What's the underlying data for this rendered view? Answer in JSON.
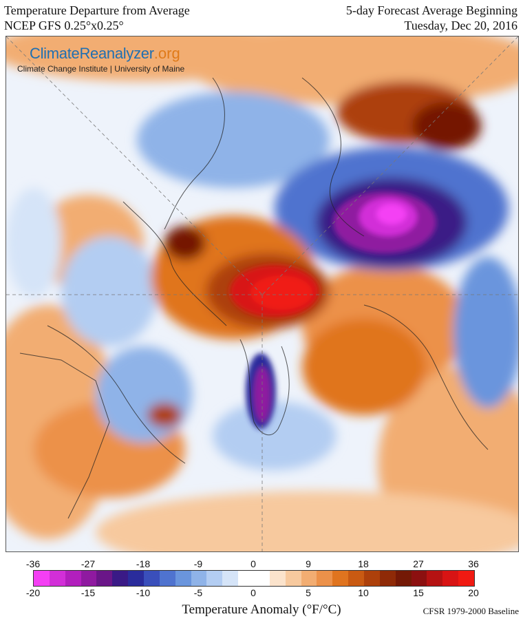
{
  "header": {
    "title_left_1": "Temperature Departure from Average",
    "title_left_2": "NCEP GFS 0.25°x0.25°",
    "title_right_1": "5-day Forecast Average Beginning",
    "title_right_2": "Tuesday, Dec 20, 2016"
  },
  "branding": {
    "name_part1": "ClimateReanalyzer",
    "name_part2": ".org",
    "subtitle": "Climate Change Institute | University of Maine"
  },
  "colorbar": {
    "title": "Temperature Anomaly (°F/°C)",
    "fahrenheit_ticks": [
      "-36",
      "-27",
      "-18",
      "-9",
      "0",
      "9",
      "18",
      "27",
      "36"
    ],
    "celsius_ticks": [
      "-20",
      "-15",
      "-10",
      "-5",
      "0",
      "5",
      "10",
      "15",
      "20"
    ],
    "colors": [
      "#f43ff4",
      "#d22fd8",
      "#b21fbd",
      "#8f1aa0",
      "#6a1688",
      "#3a1a86",
      "#2a2c9c",
      "#3a4fbb",
      "#4f73cf",
      "#6a95dd",
      "#8fb3e8",
      "#b3cdf2",
      "#d5e4f8",
      "#ffffff",
      "#ffffff",
      "#fbe3cc",
      "#f7c99e",
      "#f2ad72",
      "#ec914a",
      "#e0741f",
      "#c95a12",
      "#ad400b",
      "#8f2a07",
      "#741906",
      "#8c1010",
      "#b51212",
      "#d81414",
      "#f01a12"
    ]
  },
  "baseline": "CFSR 1979-2000 Baseline",
  "colors": {
    "warm_extreme": "#f01a12",
    "cold_extreme": "#f43ff4"
  }
}
